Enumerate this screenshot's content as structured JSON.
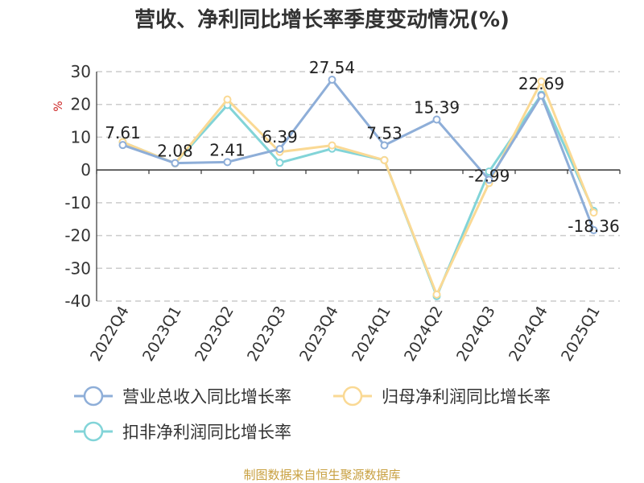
{
  "chart_data": {
    "type": "line",
    "title": "营收、净利同比增长率季度变动情况(%)",
    "ylabel": "%",
    "ylim": [
      -40,
      30
    ],
    "yticks": [
      30,
      20,
      10,
      0,
      -10,
      -20,
      -30,
      -40
    ],
    "grid": true,
    "legend_position": "bottom",
    "categories": [
      "2022Q4",
      "2023Q1",
      "2023Q2",
      "2023Q3",
      "2023Q4",
      "2024Q1",
      "2024Q2",
      "2024Q3",
      "2024Q4",
      "2025Q1"
    ],
    "series": [
      {
        "name": "营业总收入同比增长率",
        "color": "#8eaed8",
        "values": [
          7.61,
          2.08,
          2.41,
          6.39,
          27.54,
          7.53,
          15.39,
          -2.99,
          22.69,
          -18.36
        ],
        "labels": [
          "7.61",
          "2.08",
          "2.41",
          "6.39",
          "27.54",
          "7.53",
          "15.39",
          "-2.99",
          "22.69",
          "-18.36"
        ]
      },
      {
        "name": "归母净利润同比增长率",
        "color": "#fad994",
        "values": [
          8.5,
          2.0,
          21.5,
          5.5,
          7.5,
          3.0,
          -38.0,
          -4.0,
          27.0,
          -13.0
        ]
      },
      {
        "name": "扣非净利润同比增长率",
        "color": "#82d4d8",
        "values": [
          8.5,
          2.0,
          19.8,
          2.2,
          6.5,
          3.0,
          -38.5,
          -0.5,
          23.0,
          -12.5
        ]
      }
    ]
  },
  "source": {
    "text": "制图数据来自恒生聚源数据库",
    "color": "#c8a040"
  }
}
